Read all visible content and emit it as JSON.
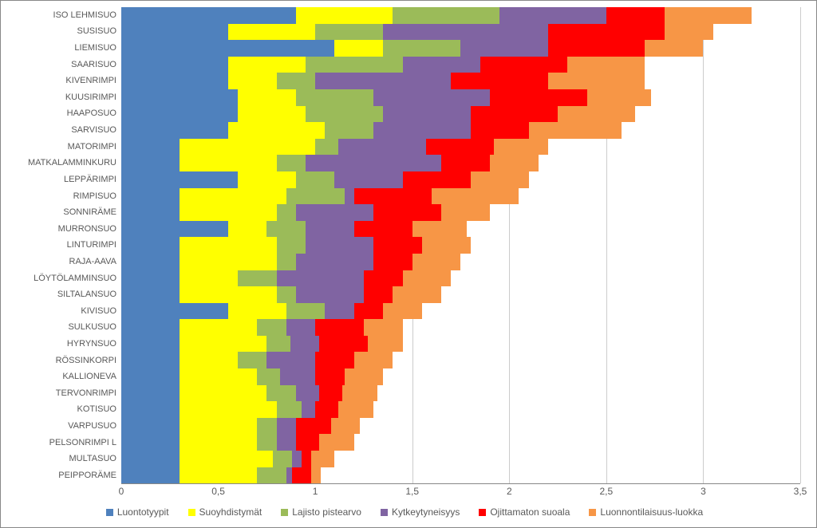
{
  "chart": {
    "type": "stacked-bar-horizontal",
    "background_color": "#ffffff",
    "grid_color": "#cccccc",
    "axis_color": "#888888",
    "text_color": "#595959",
    "label_fontsize": 11,
    "tick_fontsize": 12,
    "legend_fontsize": 12,
    "xlim": [
      0,
      3.5
    ],
    "xtick_step": 0.5,
    "xticks": [
      "0",
      "0,5",
      "1",
      "1,5",
      "2",
      "2,5",
      "3",
      "3,5"
    ],
    "series": [
      {
        "key": "luontotyypit",
        "label": "Luontotyypit",
        "color": "#4f81bd"
      },
      {
        "key": "suoyhdistymat",
        "label": "Suoyhdistymät",
        "color": "#ffff00"
      },
      {
        "key": "lajisto",
        "label": "Lajisto pistearvo",
        "color": "#9bbb59"
      },
      {
        "key": "kytkeytyneisyys",
        "label": "Kytkeytyneisyys",
        "color": "#8064a2"
      },
      {
        "key": "ojittamaton",
        "label": "Ojittamaton suoala",
        "color": "#ff0000"
      },
      {
        "key": "luonnontilaisuus",
        "label": "Luonnontilaisuus-luokka",
        "color": "#f79646"
      }
    ],
    "categories": [
      {
        "label": "ISO LEHMISUO",
        "values": [
          0.9,
          0.5,
          0.55,
          0.55,
          0.3,
          0.45
        ]
      },
      {
        "label": "SUSISUO",
        "values": [
          0.55,
          0.45,
          0.35,
          0.85,
          0.6,
          0.25
        ]
      },
      {
        "label": "LIEMISUO",
        "values": [
          1.1,
          0.25,
          0.4,
          0.45,
          0.5,
          0.3
        ]
      },
      {
        "label": "SAARISUO",
        "values": [
          0.55,
          0.4,
          0.5,
          0.4,
          0.45,
          0.4
        ]
      },
      {
        "label": "KIVENRIMPI",
        "values": [
          0.55,
          0.25,
          0.2,
          0.7,
          0.5,
          0.5
        ]
      },
      {
        "label": "KUUSIRIMPI",
        "values": [
          0.6,
          0.3,
          0.4,
          0.6,
          0.5,
          0.33
        ]
      },
      {
        "label": "HAAPOSUO",
        "values": [
          0.6,
          0.35,
          0.4,
          0.45,
          0.45,
          0.4
        ]
      },
      {
        "label": "SARVISUO",
        "values": [
          0.55,
          0.5,
          0.25,
          0.5,
          0.3,
          0.48
        ]
      },
      {
        "label": "MATORIMPI",
        "values": [
          0.3,
          0.7,
          0.12,
          0.45,
          0.35,
          0.28
        ]
      },
      {
        "label": "MATKALAMMINKURU",
        "values": [
          0.3,
          0.5,
          0.15,
          0.7,
          0.25,
          0.25
        ]
      },
      {
        "label": "LEPPÄRIMPI",
        "values": [
          0.6,
          0.3,
          0.2,
          0.35,
          0.35,
          0.3
        ]
      },
      {
        "label": "RIMPISUO",
        "values": [
          0.3,
          0.55,
          0.3,
          0.05,
          0.4,
          0.45
        ]
      },
      {
        "label": "SONNIRÄME",
        "values": [
          0.3,
          0.5,
          0.1,
          0.4,
          0.35,
          0.25
        ]
      },
      {
        "label": "MURRONSUO",
        "values": [
          0.55,
          0.2,
          0.2,
          0.25,
          0.3,
          0.28
        ]
      },
      {
        "label": "LINTURIMPI",
        "values": [
          0.3,
          0.5,
          0.15,
          0.35,
          0.25,
          0.25
        ]
      },
      {
        "label": "RAJA-AAVA",
        "values": [
          0.3,
          0.5,
          0.1,
          0.4,
          0.2,
          0.25
        ]
      },
      {
        "label": "LÖYTÖLAMMINSUO",
        "values": [
          0.3,
          0.3,
          0.2,
          0.45,
          0.2,
          0.25
        ]
      },
      {
        "label": "SILTALANSUO",
        "values": [
          0.3,
          0.5,
          0.1,
          0.35,
          0.15,
          0.25
        ]
      },
      {
        "label": "KIVISUO",
        "values": [
          0.55,
          0.3,
          0.2,
          0.15,
          0.15,
          0.2
        ]
      },
      {
        "label": "SULKUSUO",
        "values": [
          0.3,
          0.4,
          0.15,
          0.15,
          0.25,
          0.2
        ]
      },
      {
        "label": "HYRYNSUO",
        "values": [
          0.3,
          0.45,
          0.12,
          0.15,
          0.25,
          0.18
        ]
      },
      {
        "label": "RÖSSINKORPI",
        "values": [
          0.3,
          0.3,
          0.15,
          0.25,
          0.2,
          0.2
        ]
      },
      {
        "label": "KALLIONEVA",
        "values": [
          0.3,
          0.4,
          0.12,
          0.18,
          0.15,
          0.2
        ]
      },
      {
        "label": "TERVONRIMPI",
        "values": [
          0.3,
          0.45,
          0.15,
          0.12,
          0.12,
          0.18
        ]
      },
      {
        "label": "KOTISUO",
        "values": [
          0.3,
          0.5,
          0.13,
          0.07,
          0.12,
          0.18
        ]
      },
      {
        "label": "VARPUSUO",
        "values": [
          0.3,
          0.4,
          0.1,
          0.1,
          0.18,
          0.15
        ]
      },
      {
        "label": "PELSONRIMPI L",
        "values": [
          0.3,
          0.4,
          0.1,
          0.1,
          0.12,
          0.18
        ]
      },
      {
        "label": "MULTASUO",
        "values": [
          0.3,
          0.48,
          0.1,
          0.05,
          0.05,
          0.12
        ]
      },
      {
        "label": "PEIPPORÄME",
        "values": [
          0.3,
          0.4,
          0.15,
          0.03,
          0.1,
          0.05
        ]
      }
    ]
  }
}
